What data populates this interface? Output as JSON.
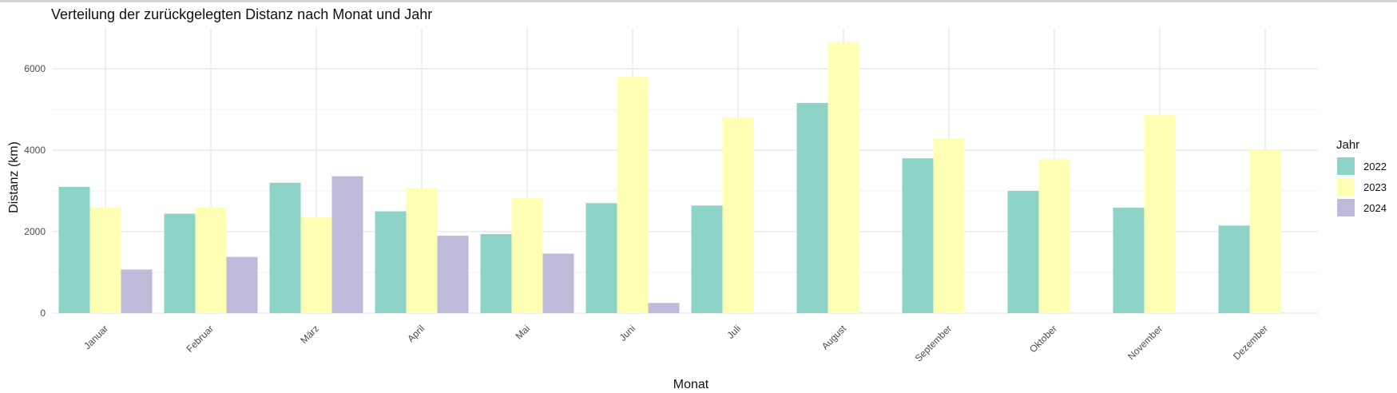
{
  "chart_data": {
    "type": "bar",
    "title": "Verteilung der zurückgelegten Distanz nach Monat und Jahr",
    "xlabel": "Monat",
    "ylabel": "Distanz (km)",
    "categories": [
      "Januar",
      "Februar",
      "März",
      "April",
      "Mai",
      "Juni",
      "Juli",
      "August",
      "September",
      "Oktober",
      "November",
      "Dezember"
    ],
    "series": [
      {
        "name": "2022",
        "color": "#8DD3C7",
        "values": [
          3100,
          2440,
          3200,
          2500,
          1940,
          2700,
          2640,
          5160,
          3800,
          3000,
          2590,
          2150
        ]
      },
      {
        "name": "2023",
        "color": "#FFFFB3",
        "values": [
          2600,
          2600,
          2350,
          3070,
          2820,
          5800,
          4800,
          6650,
          4280,
          3780,
          4870,
          4000
        ]
      },
      {
        "name": "2024",
        "color": "#BEBADA",
        "values": [
          1070,
          1380,
          3360,
          1900,
          1460,
          250,
          null,
          null,
          null,
          null,
          null,
          null
        ]
      }
    ],
    "ylim": [
      0,
      7000
    ],
    "yticks": [
      0,
      2000,
      4000,
      6000
    ],
    "grid": true,
    "legend": {
      "title": "Jahr",
      "position": "right"
    }
  }
}
